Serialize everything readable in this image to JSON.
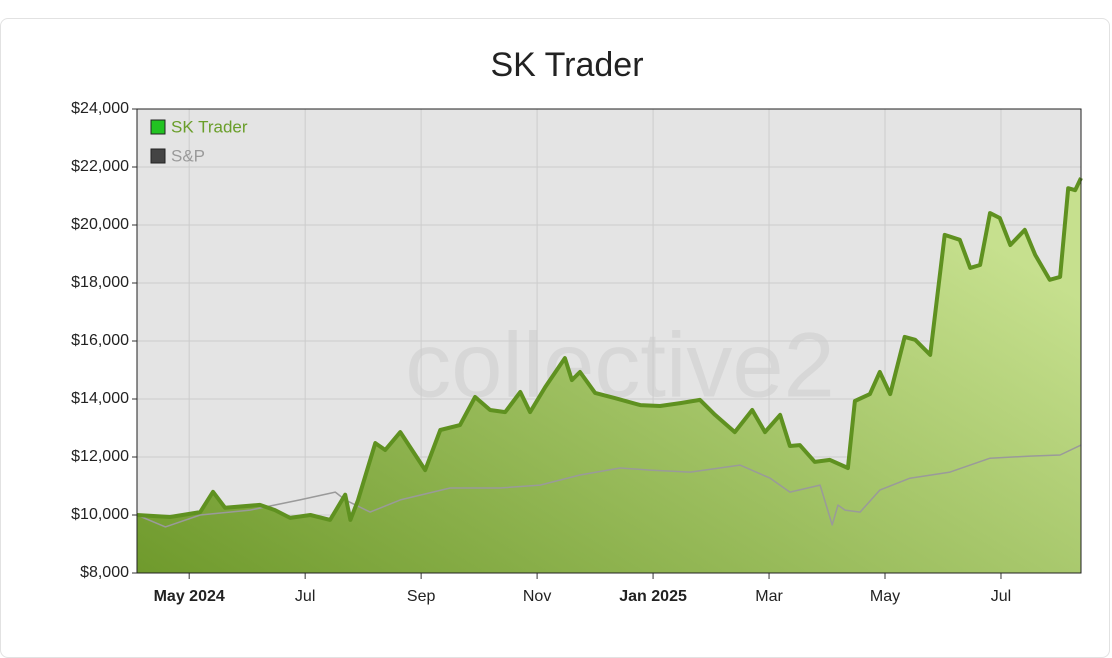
{
  "chart_data": {
    "type": "area-line",
    "title": "SK Trader",
    "watermark": "collective2",
    "xlim": [
      -0.9,
      15.38
    ],
    "xticks": [
      {
        "value": 0,
        "label": "May 2024"
      },
      {
        "value": 2,
        "label": "Jul"
      },
      {
        "value": 4,
        "label": "Sep"
      },
      {
        "value": 6,
        "label": "Nov"
      },
      {
        "value": 8,
        "label": "Jan 2025"
      },
      {
        "value": 10,
        "label": "Mar"
      },
      {
        "value": 12,
        "label": "May"
      },
      {
        "value": 14,
        "label": "Jul"
      }
    ],
    "ylim": [
      8000,
      24000
    ],
    "yticks": [
      {
        "value": 8000,
        "label": "$8,000"
      },
      {
        "value": 10000,
        "label": "$10,000"
      },
      {
        "value": 12000,
        "label": "$12,000"
      },
      {
        "value": 14000,
        "label": "$14,000"
      },
      {
        "value": 16000,
        "label": "$16,000"
      },
      {
        "value": 18000,
        "label": "$18,000"
      },
      {
        "value": 20000,
        "label": "$20,000"
      },
      {
        "value": 22000,
        "label": "$22,000"
      },
      {
        "value": 24000,
        "label": "$24,000"
      }
    ],
    "grid": true,
    "legend": "top-left",
    "series": [
      {
        "name": "SK Trader",
        "color": "#5f9120",
        "legend_color": "#22c322",
        "area": true,
        "x": [
          -0.9,
          -0.33,
          0.19,
          0.41,
          0.62,
          1.22,
          1.48,
          1.74,
          2.09,
          2.43,
          2.69,
          2.78,
          2.91,
          3.21,
          3.38,
          3.64,
          3.9,
          4.07,
          4.33,
          4.67,
          4.93,
          5.19,
          5.45,
          5.71,
          5.88,
          6.14,
          6.48,
          6.6,
          6.74,
          7.0,
          7.34,
          7.78,
          8.12,
          8.47,
          8.81,
          9.07,
          9.41,
          9.71,
          9.93,
          10.19,
          10.36,
          10.53,
          10.79,
          11.05,
          11.36,
          11.48,
          11.74,
          11.91,
          12.09,
          12.34,
          12.52,
          12.78,
          13.03,
          13.29,
          13.47,
          13.64,
          13.81,
          13.98,
          14.16,
          14.41,
          14.59,
          14.84,
          15.02,
          15.16,
          15.28,
          15.38
        ],
        "values": [
          10000,
          9930,
          10100,
          10800,
          10250,
          10350,
          10170,
          9900,
          10000,
          9830,
          10700,
          9830,
          10500,
          12480,
          12240,
          12860,
          12070,
          11550,
          12930,
          13100,
          14070,
          13620,
          13550,
          14240,
          13550,
          14410,
          15410,
          14650,
          14930,
          14210,
          14030,
          13790,
          13760,
          13860,
          13970,
          13450,
          12860,
          13620,
          12860,
          13450,
          12380,
          12410,
          11830,
          11900,
          11620,
          13930,
          14170,
          14930,
          14170,
          16140,
          16040,
          15520,
          19660,
          19490,
          18520,
          18620,
          20410,
          20240,
          19310,
          19830,
          18970,
          18110,
          18210,
          21270,
          21200,
          21620
        ]
      },
      {
        "name": "S&P",
        "color": "#9a9a9a",
        "legend_color": "#444444",
        "area": false,
        "x": [
          -0.9,
          -0.41,
          0.19,
          1.05,
          1.91,
          2.52,
          2.69,
          3.12,
          3.64,
          4.5,
          5.36,
          6.05,
          6.74,
          7.43,
          7.95,
          8.64,
          9.5,
          10.02,
          10.36,
          10.88,
          11.09,
          11.19,
          11.31,
          11.57,
          11.91,
          12.43,
          13.12,
          13.81,
          14.5,
          15.02,
          15.38
        ],
        "values": [
          10000,
          9590,
          10000,
          10170,
          10520,
          10790,
          10520,
          10100,
          10520,
          10930,
          10930,
          11030,
          11380,
          11620,
          11550,
          11480,
          11720,
          11270,
          10790,
          11030,
          9660,
          10340,
          10170,
          10100,
          10860,
          11270,
          11480,
          11960,
          12030,
          12070,
          12410
        ]
      }
    ]
  }
}
